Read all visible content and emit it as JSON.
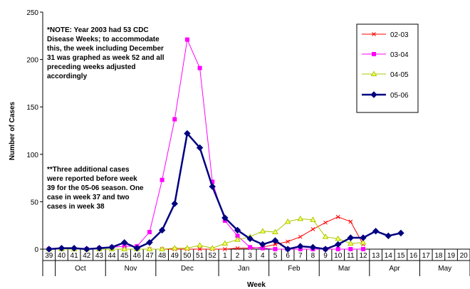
{
  "chart_data": {
    "type": "line",
    "title": "",
    "xlabel": "Week",
    "ylabel": "Number of Cases",
    "ylim": [
      0,
      250
    ],
    "yticks": [
      0,
      50,
      100,
      150,
      200,
      250
    ],
    "grid": false,
    "legend_position": "top-right",
    "weeks": [
      "39",
      "40",
      "41",
      "42",
      "43",
      "44",
      "45",
      "46",
      "47",
      "48",
      "49",
      "50",
      "51",
      "52",
      "1",
      "2",
      "3",
      "4",
      "5",
      "6",
      "7",
      "8",
      "9",
      "10",
      "11",
      "12",
      "13",
      "14",
      "15",
      "16",
      "17",
      "18",
      "19",
      "20"
    ],
    "months": [
      {
        "label": "Oct",
        "start": 1,
        "end": 5
      },
      {
        "label": "Nov",
        "start": 5,
        "end": 9
      },
      {
        "label": "Dec",
        "start": 9,
        "end": 14
      },
      {
        "label": "Jan",
        "start": 14,
        "end": 18
      },
      {
        "label": "Feb",
        "start": 18,
        "end": 22
      },
      {
        "label": "Mar",
        "start": 22,
        "end": 26
      },
      {
        "label": "Apr",
        "start": 26,
        "end": 30
      },
      {
        "label": "May",
        "start": 30,
        "end": 34
      }
    ],
    "series": [
      {
        "name": "02-03",
        "color": "#ff0000",
        "marker": "x",
        "values": [
          0,
          0,
          0,
          0,
          0,
          0,
          0,
          0,
          0,
          0,
          0,
          0,
          0,
          0,
          0,
          1,
          1,
          2,
          5,
          8,
          13,
          21,
          28,
          34,
          29,
          5,
          null,
          null,
          null,
          null,
          null,
          null,
          null,
          null
        ]
      },
      {
        "name": "03-04",
        "color": "#ff00ff",
        "marker": "square",
        "values": [
          0,
          0,
          0,
          0,
          1,
          2,
          3,
          3,
          18,
          73,
          137,
          221,
          191,
          71,
          30,
          14,
          2,
          1,
          0,
          0,
          0,
          0,
          0,
          0,
          0,
          0,
          null,
          null,
          null,
          null,
          null,
          null,
          null,
          null
        ]
      },
      {
        "name": "04-05",
        "color": "#a8c800",
        "marker": "triangle",
        "values": [
          0,
          0,
          0,
          0,
          0,
          0,
          0,
          0,
          0,
          0,
          1,
          1,
          4,
          1,
          6,
          10,
          13,
          19,
          18,
          29,
          32,
          31,
          13,
          11,
          6,
          7,
          null,
          null,
          null,
          null,
          null,
          null,
          null,
          null
        ]
      },
      {
        "name": "05-06",
        "color": "#000080",
        "marker": "diamond",
        "values": [
          0,
          1,
          1,
          0,
          1,
          2,
          7,
          1,
          7,
          20,
          48,
          122,
          107,
          66,
          33,
          20,
          11,
          5,
          9,
          0,
          3,
          2,
          0,
          5,
          12,
          12,
          19,
          14,
          17,
          null,
          null,
          null,
          null,
          null
        ]
      }
    ]
  },
  "notes": {
    "note1": [
      "*NOTE: Year 2003 had 53 CDC",
      "Disease Weeks; to accommodate",
      "this, the week including December",
      "31 was graphed as week 52 and all",
      "preceding weeks adjusted",
      "accordingly"
    ],
    "note2": [
      "**Three additional cases",
      "were reported before week",
      "39 for the 05-06 season. One",
      "case in week 37 and two",
      "cases in week 38"
    ]
  }
}
